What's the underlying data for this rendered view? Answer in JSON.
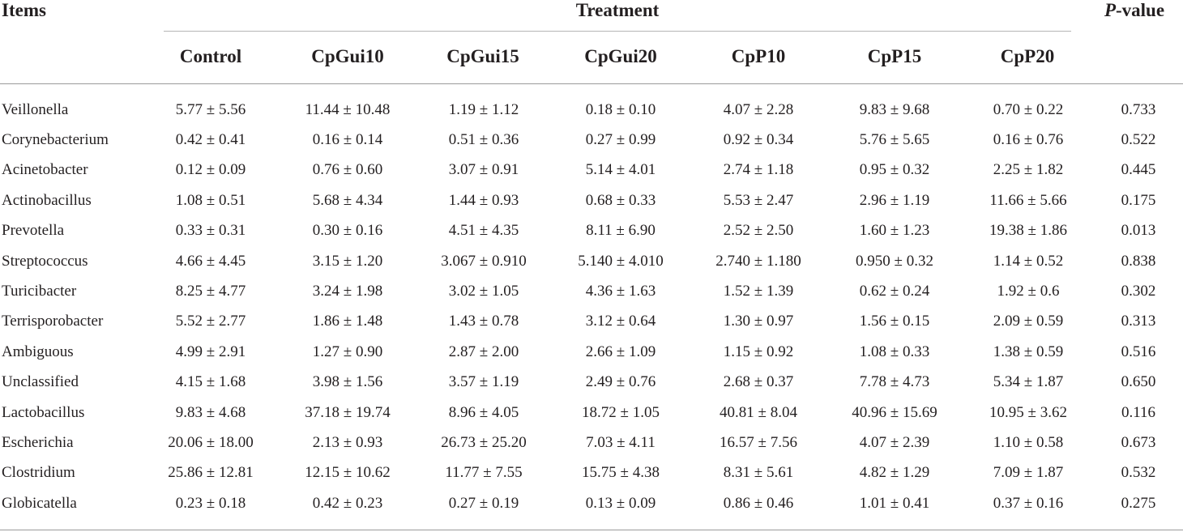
{
  "header": {
    "items": "Items",
    "treatment": "Treatment",
    "p_italic": "P",
    "p_rest": "-value",
    "groups": [
      "Control",
      "CpGui10",
      "CpGui15",
      "CpGui20",
      "CpP10",
      "CpP15",
      "CpP20"
    ]
  },
  "rows": [
    {
      "item": "Veillonella",
      "values": [
        "5.77 ± 5.56",
        "11.44 ± 10.48",
        "1.19 ± 1.12",
        "0.18 ± 0.10",
        "4.07 ± 2.28",
        "9.83 ± 9.68",
        "0.70 ± 0.22"
      ],
      "p": "0.733"
    },
    {
      "item": "Corynebacterium",
      "values": [
        "0.42 ± 0.41",
        "0.16 ± 0.14",
        "0.51 ± 0.36",
        "0.27 ± 0.99",
        "0.92 ± 0.34",
        "5.76 ± 5.65",
        "0.16 ± 0.76"
      ],
      "p": "0.522"
    },
    {
      "item": "Acinetobacter",
      "values": [
        "0.12 ± 0.09",
        "0.76 ± 0.60",
        "3.07 ± 0.91",
        "5.14 ± 4.01",
        "2.74 ± 1.18",
        "0.95 ± 0.32",
        "2.25 ± 1.82"
      ],
      "p": "0.445"
    },
    {
      "item": "Actinobacillus",
      "values": [
        "1.08 ± 0.51",
        "5.68 ± 4.34",
        "1.44 ± 0.93",
        "0.68 ± 0.33",
        "5.53 ± 2.47",
        "2.96 ± 1.19",
        "11.66 ± 5.66"
      ],
      "p": "0.175"
    },
    {
      "item": "Prevotella",
      "values": [
        "0.33 ± 0.31",
        "0.30 ± 0.16",
        "4.51 ± 4.35",
        "8.11 ± 6.90",
        "2.52 ± 2.50",
        "1.60 ± 1.23",
        "19.38 ± 1.86"
      ],
      "p": "0.013"
    },
    {
      "item": "Streptococcus",
      "values": [
        "4.66 ± 4.45",
        "3.15 ± 1.20",
        "3.067 ± 0.910",
        "5.140 ± 4.010",
        "2.740 ± 1.180",
        "0.950 ± 0.32",
        "1.14 ± 0.52"
      ],
      "p": "0.838"
    },
    {
      "item": "Turicibacter",
      "values": [
        "8.25 ± 4.77",
        "3.24 ± 1.98",
        "3.02 ± 1.05",
        "4.36 ± 1.63",
        "1.52 ± 1.39",
        "0.62 ± 0.24",
        "1.92 ± 0.6"
      ],
      "p": "0.302"
    },
    {
      "item": "Terrisporobacter",
      "values": [
        "5.52 ± 2.77",
        "1.86 ± 1.48",
        "1.43 ± 0.78",
        "3.12 ± 0.64",
        "1.30 ± 0.97",
        "1.56 ± 0.15",
        "2.09 ± 0.59"
      ],
      "p": "0.313"
    },
    {
      "item": "Ambiguous",
      "values": [
        "4.99 ± 2.91",
        "1.27 ± 0.90",
        "2.87 ± 2.00",
        "2.66 ± 1.09",
        "1.15 ± 0.92",
        "1.08 ± 0.33",
        "1.38 ± 0.59"
      ],
      "p": "0.516"
    },
    {
      "item": "Unclassified",
      "values": [
        "4.15 ± 1.68",
        "3.98 ± 1.56",
        "3.57 ± 1.19",
        "2.49 ± 0.76",
        "2.68 ± 0.37",
        "7.78 ± 4.73",
        "5.34 ± 1.87"
      ],
      "p": "0.650"
    },
    {
      "item": "Lactobacillus",
      "values": [
        "9.83 ± 4.68",
        "37.18 ± 19.74",
        "8.96 ± 4.05",
        "18.72 ± 1.05",
        "40.81 ± 8.04",
        "40.96 ± 15.69",
        "10.95 ± 3.62"
      ],
      "p": "0.116"
    },
    {
      "item": "Escherichia",
      "values": [
        "20.06 ± 18.00",
        "2.13 ± 0.93",
        "26.73 ± 25.20",
        "7.03 ± 4.11",
        "16.57 ± 7.56",
        "4.07 ± 2.39",
        "1.10 ± 0.58"
      ],
      "p": "0.673"
    },
    {
      "item": "Clostridium",
      "values": [
        "25.86 ± 12.81",
        "12.15 ± 10.62",
        "11.77 ± 7.55",
        "15.75 ± 4.38",
        "8.31 ± 5.61",
        "4.82 ± 1.29",
        "7.09 ± 1.87"
      ],
      "p": "0.532"
    },
    {
      "item": "Globicatella",
      "values": [
        "0.23 ± 0.18",
        "0.42 ± 0.23",
        "0.27 ± 0.19",
        "0.13 ± 0.09",
        "0.86 ± 0.46",
        "1.01 ± 0.41",
        "0.37 ± 0.16"
      ],
      "p": "0.275"
    }
  ]
}
